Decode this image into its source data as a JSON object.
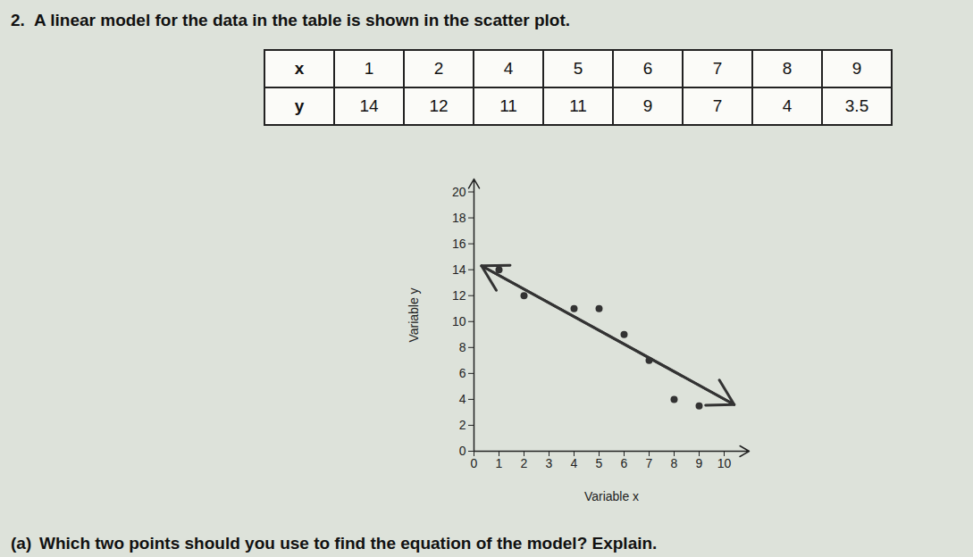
{
  "heading": {
    "number": "2.",
    "text": "A linear model for the data in the table is shown in the scatter plot."
  },
  "table": {
    "rows": [
      [
        "x",
        1,
        2,
        4,
        5,
        6,
        7,
        8,
        9
      ],
      [
        "y",
        14,
        12,
        11,
        11,
        9,
        7,
        4,
        3.5
      ]
    ]
  },
  "chart_data": {
    "type": "scatter",
    "x_label": "Variable x",
    "y_label": "Variable y",
    "x": [
      1,
      2,
      4,
      5,
      6,
      7,
      8,
      9
    ],
    "values": [
      14,
      12,
      11,
      11,
      9,
      7,
      4,
      3.5
    ],
    "color": "#333333",
    "marker": "circle",
    "model_line": {
      "x": [
        0.3,
        10.4
      ],
      "values": [
        14.3,
        3.6
      ],
      "color": "#333333",
      "marker": "arrow"
    },
    "xlim": [
      0,
      11
    ],
    "ylim": [
      0,
      21
    ],
    "xticks": [
      0,
      1,
      2,
      3,
      4,
      5,
      6,
      7,
      8,
      9,
      10
    ],
    "yticks": [
      0,
      2,
      4,
      6,
      8,
      10,
      12,
      14,
      16,
      18,
      20
    ],
    "grid": false
  },
  "question_a": {
    "label": "(a)",
    "text": "Which two points should you use to find the equation of the model? Explain."
  }
}
